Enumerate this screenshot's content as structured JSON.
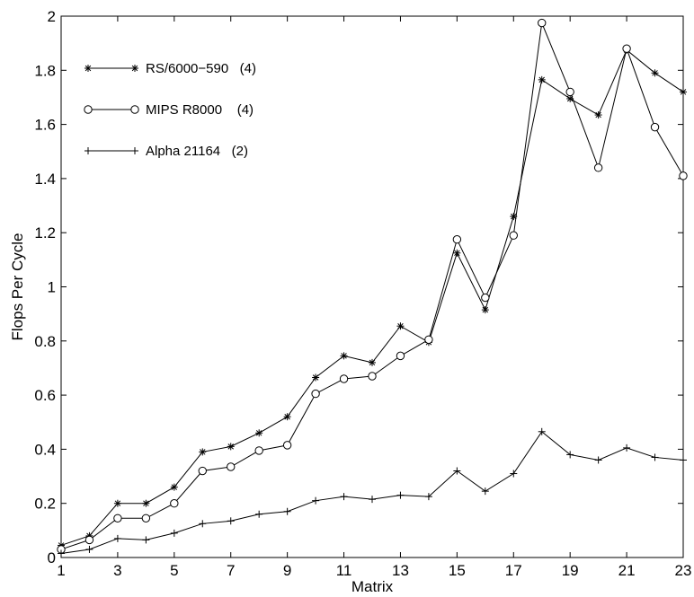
{
  "chart_data": {
    "type": "line",
    "xlabel": "Matrix",
    "ylabel": "Flops Per Cycle",
    "xlim": [
      1,
      23
    ],
    "ylim": [
      0,
      2
    ],
    "xticks": [
      1,
      3,
      5,
      7,
      9,
      11,
      13,
      15,
      17,
      19,
      21,
      23
    ],
    "xtick_labels": [
      "1",
      "3",
      "5",
      "7",
      "9",
      "11",
      "13",
      "15",
      "17",
      "19",
      "21",
      "23"
    ],
    "yticks": [
      0,
      0.2,
      0.4,
      0.6,
      0.8,
      1,
      1.2,
      1.4,
      1.6,
      1.8,
      2
    ],
    "ytick_labels": [
      "0",
      "0.2",
      "0.4",
      "0.6",
      "0.8",
      "1",
      "1.2",
      "1.4",
      "1.6",
      "1.8",
      "2"
    ],
    "grid": false,
    "legend_position": "top-left",
    "x": [
      1,
      2,
      3,
      4,
      5,
      6,
      7,
      8,
      9,
      10,
      11,
      12,
      13,
      14,
      15,
      16,
      17,
      18,
      19,
      20,
      21,
      22,
      23
    ],
    "series": [
      {
        "name": "RS/6000−590   (4)",
        "marker": "asterisk",
        "color": "#000000",
        "values": [
          0.045,
          0.08,
          0.2,
          0.2,
          0.26,
          0.39,
          0.41,
          0.46,
          0.52,
          0.665,
          0.745,
          0.72,
          0.855,
          0.795,
          1.125,
          0.915,
          1.26,
          1.765,
          1.695,
          1.635,
          1.875,
          1.79,
          1.72
        ]
      },
      {
        "name": "MIPS R8000    (4)",
        "marker": "circle",
        "color": "#000000",
        "values": [
          0.03,
          0.065,
          0.145,
          0.145,
          0.2,
          0.32,
          0.335,
          0.395,
          0.415,
          0.605,
          0.66,
          0.67,
          0.745,
          0.805,
          1.175,
          0.96,
          1.19,
          1.975,
          1.72,
          1.44,
          1.88,
          1.59,
          1.41
        ]
      },
      {
        "name": "Alpha 21164   (2)",
        "marker": "plus",
        "color": "#000000",
        "values": [
          0.015,
          0.03,
          0.07,
          0.065,
          0.09,
          0.125,
          0.135,
          0.16,
          0.17,
          0.21,
          0.225,
          0.215,
          0.23,
          0.225,
          0.32,
          0.245,
          0.31,
          0.465,
          0.38,
          0.36,
          0.405,
          0.37,
          0.36
        ]
      }
    ]
  }
}
